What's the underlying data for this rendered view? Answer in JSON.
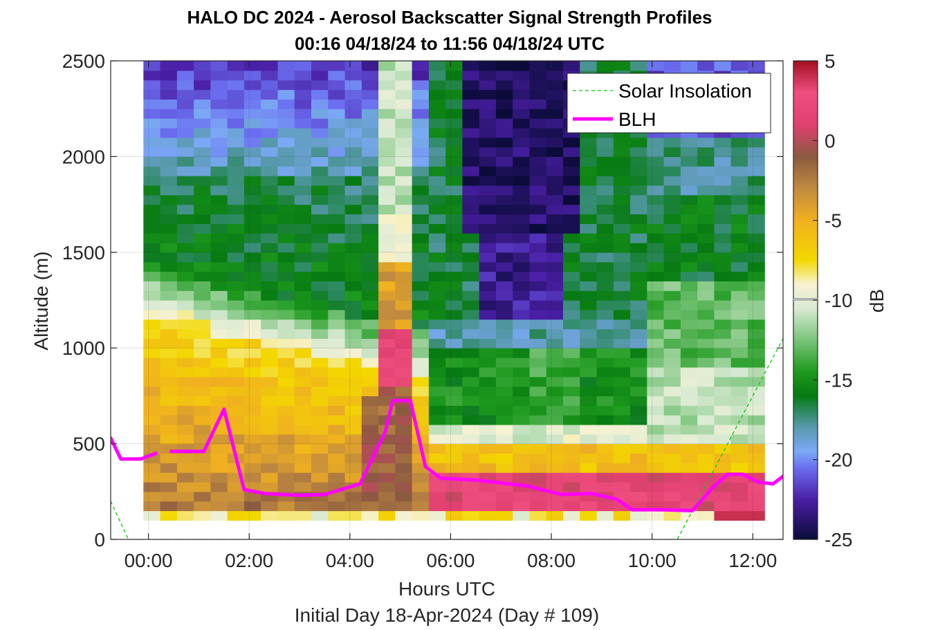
{
  "title_line1": "HALO DC 2024 - Aerosol Backscatter Signal Strength Profiles",
  "title_line2": "00:16 04/18/24 to 11:56 04/18/24  UTC",
  "chart_data": {
    "type": "heatmap",
    "xlabel": "Hours UTC",
    "x_sublabel": "Initial Day 18-Apr-2024 (Day # 109)",
    "ylabel": "Altitude (m)",
    "colorbar_label": "dB",
    "xlim": [
      -0.75,
      12.6
    ],
    "ylim": [
      0,
      2500
    ],
    "clim": [
      -25,
      5
    ],
    "x_ticks": [
      0,
      2,
      4,
      6,
      8,
      10,
      12
    ],
    "x_tick_labels": [
      "00:00",
      "02:00",
      "04:00",
      "06:00",
      "08:00",
      "10:00",
      "12:00"
    ],
    "y_ticks": [
      0,
      500,
      1000,
      1500,
      2000,
      2500
    ],
    "y_tick_labels": [
      "0",
      "500",
      "1000",
      "1500",
      "2000",
      "2500"
    ],
    "colorbar_ticks": [
      5,
      0,
      -5,
      -10,
      -15,
      -20,
      -25
    ],
    "colorbar_tick_labels": [
      "5",
      "0",
      "-5",
      "-10",
      "-15",
      "-20",
      "-25"
    ],
    "grid": true,
    "legend_position": "top-right",
    "legend": [
      "Solar Insolation",
      "BLH"
    ],
    "colors": {
      "blh": "#ff00ff",
      "solar": "#00cc00"
    },
    "colormap": [
      [
        -25,
        "#0b0b3a"
      ],
      [
        -22.5,
        "#4a1fa6"
      ],
      [
        -20.5,
        "#6b6ef0"
      ],
      [
        -19.5,
        "#7ba9f5"
      ],
      [
        -18,
        "#5a9ab0"
      ],
      [
        -17,
        "#2e8a63"
      ],
      [
        -16,
        "#077a12"
      ],
      [
        -14.5,
        "#1e9a1e"
      ],
      [
        -12.5,
        "#7ac47a"
      ],
      [
        -10.5,
        "#d9ead3"
      ],
      [
        -9,
        "#f7f2d2"
      ],
      [
        -7.5,
        "#f3d800"
      ],
      [
        -5,
        "#f0b020"
      ],
      [
        -3,
        "#c08a40"
      ],
      [
        -1,
        "#8a5a40"
      ],
      [
        1,
        "#e04070"
      ],
      [
        3,
        "#f05080"
      ],
      [
        5,
        "#a01020"
      ]
    ],
    "heatmap": {
      "x_start": -0.1,
      "x_end": 11.9,
      "dx": 0.3333,
      "y_levels": [
        100,
        150,
        200,
        250,
        300,
        350,
        400,
        450,
        500,
        550,
        600,
        650,
        700,
        750,
        800,
        850,
        900,
        950,
        1000,
        1050,
        1100,
        1150,
        1200,
        1250,
        1300,
        1350,
        1400,
        1450,
        1500,
        1550,
        1600,
        1650,
        1700,
        1750,
        1800,
        1850,
        1900,
        1950,
        2000,
        2050,
        2100,
        2150,
        2200,
        2250,
        2300,
        2350,
        2400,
        2450,
        2500
      ]
    },
    "series": [
      {
        "name": "BLH",
        "segments": [
          {
            "x": [
              -0.75,
              -0.55,
              -0.15,
              0.15
            ],
            "y": [
              530,
              420,
              420,
              450
            ]
          },
          {
            "x": [
              0.45,
              1.1,
              1.5,
              1.9,
              2.3,
              3.0,
              3.5,
              4.2,
              4.7,
              4.85,
              5.2,
              5.5,
              5.8,
              6.5,
              7.5,
              8.2,
              8.8,
              9.3,
              9.6,
              10.2,
              10.8,
              11.2,
              11.5,
              11.8,
              12.1,
              12.4,
              12.6
            ],
            "y": [
              460,
              460,
              680,
              260,
              240,
              230,
              235,
              290,
              560,
              725,
              725,
              380,
              320,
              310,
              280,
              235,
              240,
              210,
              155,
              155,
              150,
              270,
              340,
              340,
              300,
              290,
              330
            ]
          }
        ]
      },
      {
        "name": "Solar Insolation",
        "x": [
          -0.75,
          -0.4,
          10.5,
          12.6
        ],
        "y": [
          200,
          0,
          0,
          1050
        ]
      }
    ]
  }
}
